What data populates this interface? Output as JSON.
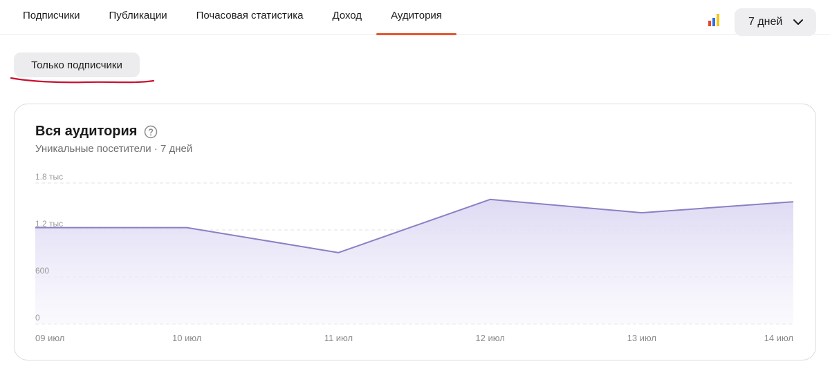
{
  "tabs": [
    {
      "label": "Подписчики",
      "active": false
    },
    {
      "label": "Публикации",
      "active": false
    },
    {
      "label": "Почасовая статистика",
      "active": false
    },
    {
      "label": "Доход",
      "active": false
    },
    {
      "label": "Аудитория",
      "active": true
    }
  ],
  "toolbar": {
    "chart_type_icon": "bar-chart-icon",
    "period_label": "7 дней"
  },
  "filter": {
    "label": "Только подписчики"
  },
  "card": {
    "title": "Вся аудитория",
    "subtitle": "Уникальные посетители · 7 дней"
  },
  "colors": {
    "accent": "#e4572e",
    "line": "#8a80c4",
    "fill": "#e4e1f5",
    "annotation": "#c8102e"
  },
  "chart_data": {
    "type": "area",
    "categories": [
      "09 июл",
      "10 июл",
      "11 июл",
      "12 июл",
      "13 июл",
      "14 июл"
    ],
    "values": [
      1230,
      1230,
      910,
      1590,
      1420,
      1560
    ],
    "y_ticks": [
      {
        "value": 0,
        "label": "0"
      },
      {
        "value": 600,
        "label": "600"
      },
      {
        "value": 1200,
        "label": "1.2 тыс"
      },
      {
        "value": 1800,
        "label": "1.8 тыс"
      }
    ],
    "ylim": [
      0,
      1800
    ],
    "grid": true
  }
}
